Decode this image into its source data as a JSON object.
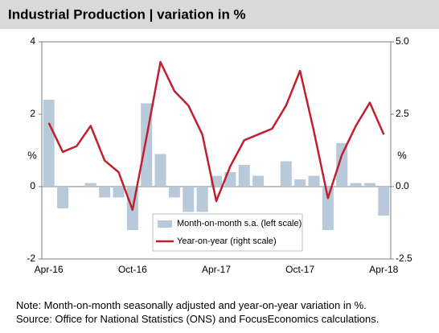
{
  "chart_data": {
    "type": "bar_line",
    "title": "Industrial Production | variation in %",
    "ylabel": "%",
    "y2label": "%",
    "categories": [
      "Apr-16",
      null,
      null,
      null,
      null,
      null,
      "Oct-16",
      null,
      null,
      null,
      null,
      null,
      "Apr-17",
      null,
      null,
      null,
      null,
      null,
      "Oct-17",
      null,
      null,
      null,
      null,
      null,
      "Apr-18"
    ],
    "series": [
      {
        "name": "Month-on-month s.a. (left scale)",
        "color": "#b8cad9",
        "kind": "bar",
        "values": [
          2.4,
          -0.6,
          0,
          0.1,
          -0.3,
          -0.3,
          -1.2,
          2.3,
          0.9,
          -0.3,
          -0.7,
          -0.7,
          0.3,
          0.4,
          0.6,
          0.3,
          0,
          0.7,
          0.2,
          0.3,
          -1.2,
          1.2,
          0.1,
          0.1,
          -0.8
        ]
      },
      {
        "name": "Year-on-year (right scale)",
        "color": "#c0202e",
        "kind": "line",
        "axis": "y2",
        "values": [
          2.2,
          1.2,
          1.4,
          2.1,
          0.9,
          0.5,
          -0.8,
          1.7,
          4.3,
          3.3,
          2.8,
          1.8,
          -0.5,
          0.7,
          1.6,
          1.8,
          2.0,
          2.8,
          4.0,
          1.9,
          -0.4,
          1.1,
          2.1,
          2.9,
          1.8
        ]
      }
    ],
    "ylim": [
      -2,
      4
    ],
    "yticks": [
      -2,
      0,
      2,
      4
    ],
    "y2lim": [
      -2.5,
      5
    ],
    "y2ticks": [
      -2.5,
      {
        "value": 0,
        "label": "0.0"
      },
      2.5,
      {
        "value": 5,
        "label": "5.0"
      }
    ],
    "legend": "bottom-center",
    "notes": [
      "Note: Month-on-month seasonally adjusted and year-on-year variation in %.",
      "Source: Office for National Statistics (ONS) and FocusEconomics calculations."
    ]
  }
}
